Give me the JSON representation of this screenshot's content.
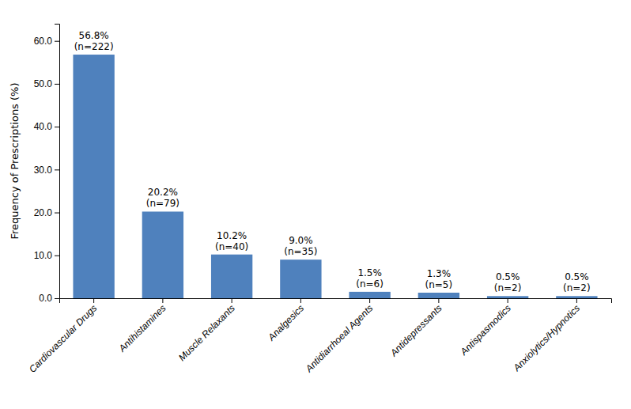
{
  "chart_data": {
    "type": "bar",
    "y_label": "Frequency of Prescriptions (%)",
    "categories": [
      "Cardiovascular Drugs",
      "Antihistamines",
      "Muscle Relaxants",
      "Analgesics",
      "Antidiarrhoeal Agents",
      "Antidepressants",
      "Antispasmodics",
      "Anxiolytics/Hypnotics"
    ],
    "values": [
      56.8,
      20.2,
      10.2,
      9.0,
      1.5,
      1.3,
      0.5,
      0.5
    ],
    "value_labels": [
      "56.8%",
      "20.2%",
      "10.2%",
      "9.0%",
      "1.5%",
      "1.3%",
      "0.5%",
      "0.5%"
    ],
    "counts": [
      222,
      79,
      40,
      35,
      6,
      5,
      2,
      2
    ],
    "count_labels": [
      "(n=222)",
      "(n=79)",
      "(n=40)",
      "(n=35)",
      "(n=6)",
      "(n=5)",
      "(n=2)",
      "(n=2)"
    ],
    "color": "#4f81bd",
    "ylim": [
      0,
      64
    ],
    "yticks": [
      {
        "value": 0,
        "label": "0.0"
      },
      {
        "value": 10,
        "label": "10.0"
      },
      {
        "value": 20,
        "label": "20.0"
      },
      {
        "value": 30,
        "label": "30.0"
      },
      {
        "value": 40,
        "label": "40.0"
      },
      {
        "value": 50,
        "label": "50.0"
      },
      {
        "value": 60,
        "label": "60.0"
      }
    ],
    "grid": false,
    "data_labels": true
  }
}
